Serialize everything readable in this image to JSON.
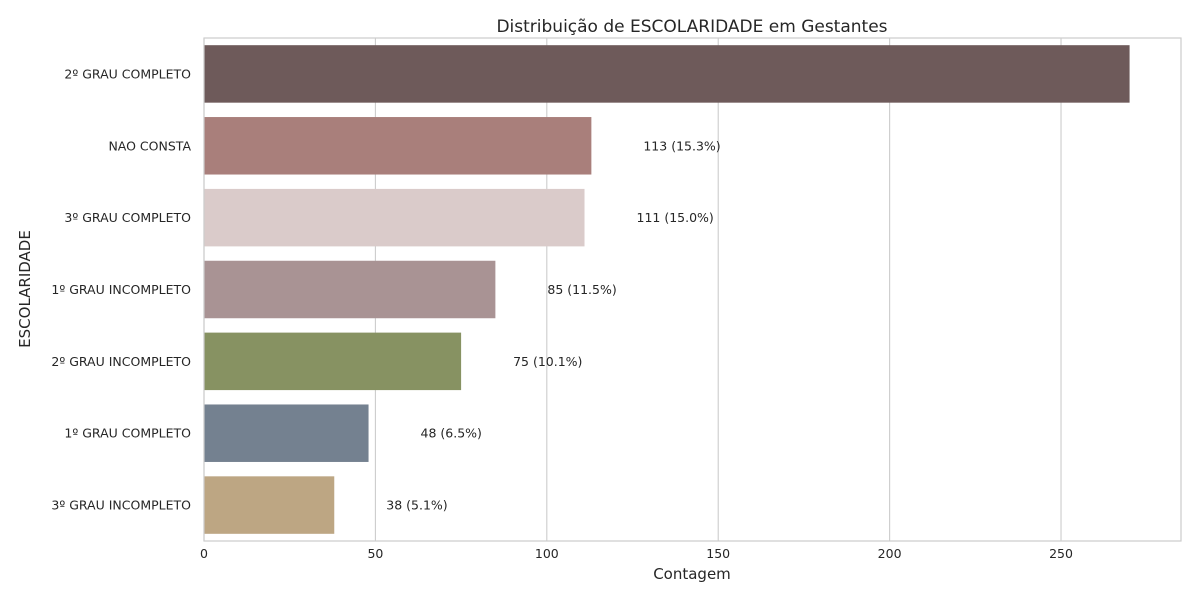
{
  "chart_data": {
    "type": "bar",
    "orientation": "horizontal",
    "title": "Distribuição de ESCOLARIDADE em Gestantes",
    "xlabel": "Contagem",
    "ylabel": "ESCOLARIDADE",
    "xlim": [
      0,
      285
    ],
    "xticks": [
      0,
      50,
      100,
      150,
      200,
      250
    ],
    "grid": "vertical",
    "categories": [
      "2º GRAU COMPLETO",
      "NAO CONSTA",
      "3º GRAU COMPLETO",
      "1º GRAU INCOMPLETO",
      "2º GRAU INCOMPLETO",
      "1º GRAU COMPLETO",
      "3º GRAU INCOMPLETO"
    ],
    "values": [
      270,
      113,
      111,
      85,
      75,
      48,
      38
    ],
    "data_labels": [
      "",
      "113 (15.3%)",
      "111 (15.0%)",
      "85 (11.5%)",
      "75 (10.1%)",
      "48 (6.5%)",
      "38 (5.1%)"
    ],
    "colors": [
      "#6e5a5a",
      "#a97f7b",
      "#dacbca",
      "#a99394",
      "#879262",
      "#748190",
      "#bda683"
    ]
  }
}
